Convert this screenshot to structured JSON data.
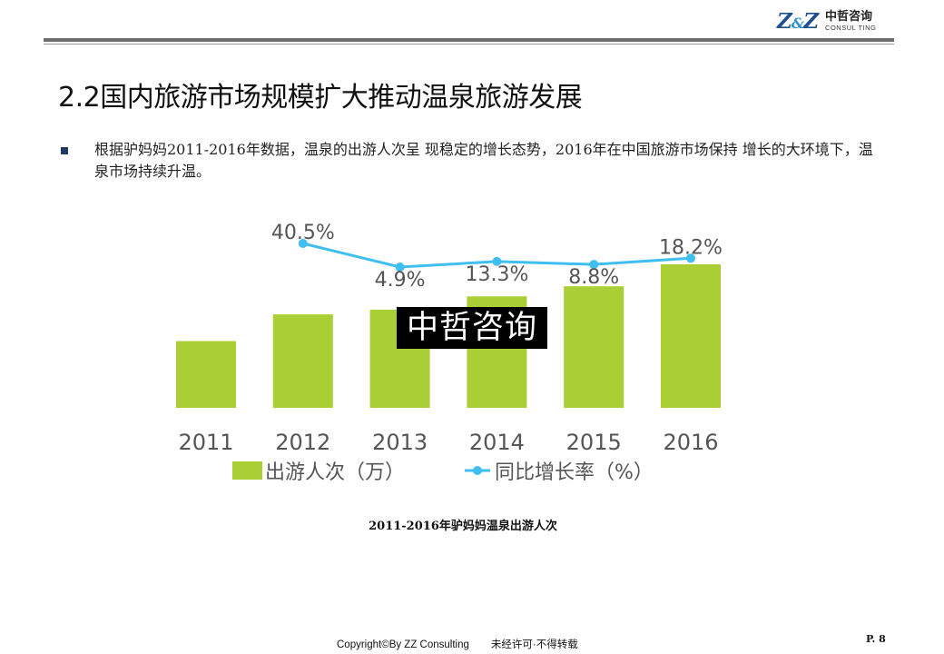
{
  "header": {
    "logo_mark": "Z&Z",
    "logo_cn": "中哲咨询",
    "logo_en": "CONSUL TING"
  },
  "title": "2.2国内旅游市场规模扩大推动温泉旅游发展",
  "bullet": "根据驴妈妈2011-2016年数据，温泉的出游人次呈 现稳定的增长态势，2016年在中国旅游市场保持 增长的大环境下，温泉市场持续升温。",
  "watermark": "中哲咨询",
  "caption": "2011-2016年驴妈妈温泉出游人次",
  "footer": {
    "copyright": "Copyright©By  ZZ Consulting",
    "notice": "未经许可·不得转载",
    "page": "P. 8"
  },
  "colors": {
    "bar": "#a9cf35",
    "line": "#3fbef0",
    "label": "#555555"
  },
  "chart_data": {
    "type": "bar",
    "categories": [
      "2011",
      "2012",
      "2013",
      "2014",
      "2015",
      "2016"
    ],
    "series": [
      {
        "name": "出游人次（万）",
        "type": "bar",
        "values": [
          1.0,
          1.4,
          1.47,
          1.67,
          1.82,
          2.15
        ]
      },
      {
        "name": "同比增长率（%）",
        "type": "line",
        "values": [
          null,
          40.5,
          4.9,
          13.3,
          8.8,
          18.2
        ],
        "labels": [
          "",
          "40.5%",
          "4.9%",
          "13.3%",
          "8.8%",
          "18.2%"
        ]
      }
    ],
    "legend_position": "bottom",
    "grid": false
  }
}
